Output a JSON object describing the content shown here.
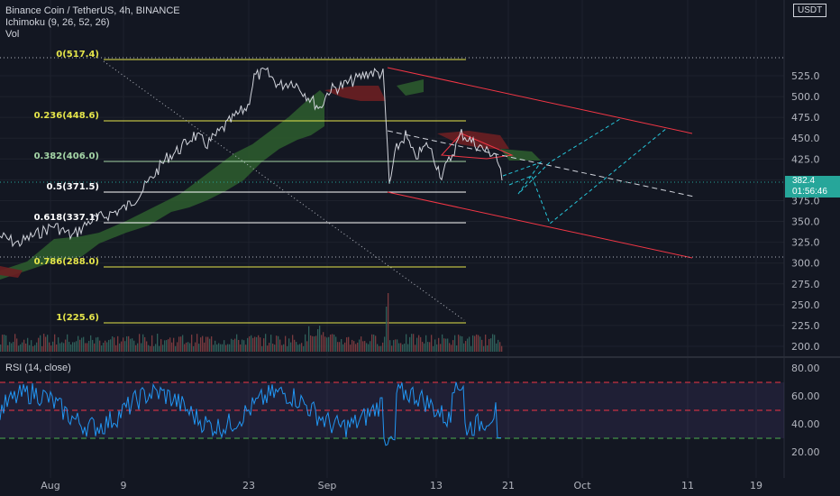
{
  "header": {
    "symbol_line": "Binance Coin / TetherUS, 4h, BINANCE",
    "indicator_1": "Ichimoku (9, 26, 52, 26)",
    "indicator_2": "Vol"
  },
  "rsi_panel": {
    "label": "RSI (14, close)"
  },
  "price_scale": {
    "currency": "USDT",
    "current_price": "382.4",
    "countdown": "01:56:46"
  },
  "colors": {
    "background": "#131722",
    "fib_yellow": "#e5e54a",
    "fib_green": "#66bb6a",
    "fib_white": "#ffffff",
    "channel_red": "#f23645",
    "projection_cyan": "#26c6da",
    "rsi_line": "#2196f3",
    "rsi_band": "#7e57c2",
    "price_tag": "#26a69a",
    "cloud_green": "#2e5e2e",
    "cloud_red": "#6b1f22"
  },
  "chart_data": [
    {
      "type": "line",
      "title": "Binance Coin / TetherUS, 4h, BINANCE",
      "y_ticks": [
        "525.0",
        "500.0",
        "475.0",
        "450.0",
        "425.0",
        "400.0",
        "375.0",
        "350.0",
        "325.0",
        "300.0",
        "275.0",
        "250.0",
        "225.0",
        "200.0"
      ],
      "ylim": [
        195,
        555
      ],
      "x_ticks": [
        "Aug",
        "9",
        "23",
        "Sep",
        "13",
        "21",
        "Oct",
        "11",
        "19"
      ],
      "fib_levels": [
        {
          "label": "0(517.4)",
          "value": 517.4
        },
        {
          "label": "0.236(448.6)",
          "value": 448.6
        },
        {
          "label": "0.382(406.0)",
          "value": 406.0
        },
        {
          "label": "0.5(371.5)",
          "value": 371.5
        },
        {
          "label": "0.618(337.1)",
          "value": 337.1
        },
        {
          "label": "0.786(288.0)",
          "value": 288.0
        },
        {
          "label": "1(225.6)",
          "value": 225.6
        }
      ],
      "price_path": [
        [
          "Jul 29",
          315
        ],
        [
          "Aug 1",
          325
        ],
        [
          "Aug 4",
          335
        ],
        [
          "Aug 7",
          328
        ],
        [
          "Aug 9",
          350
        ],
        [
          "Aug 11",
          385
        ],
        [
          "Aug 13",
          405
        ],
        [
          "Aug 15",
          430
        ],
        [
          "Aug 17",
          410
        ],
        [
          "Aug 19",
          440
        ],
        [
          "Aug 21",
          455
        ],
        [
          "Aug 23",
          505
        ],
        [
          "Aug 25",
          495
        ],
        [
          "Aug 27",
          480
        ],
        [
          "Aug 29",
          490
        ],
        [
          "Aug 31",
          470
        ],
        [
          "Sep 2",
          500
        ],
        [
          "Sep 4",
          497
        ],
        [
          "Sep 6",
          510
        ],
        [
          "Sep 7",
          490
        ],
        [
          "Sep 7b",
          380
        ],
        [
          "Sep 9",
          410
        ],
        [
          "Sep 11",
          395
        ],
        [
          "Sep 13",
          410
        ],
        [
          "Sep 15",
          435
        ],
        [
          "Sep 17",
          415
        ],
        [
          "Sep 19",
          400
        ],
        [
          "Sep 20",
          382.4
        ]
      ],
      "current_price": 382.4
    },
    {
      "type": "line",
      "title": "RSI (14, close)",
      "y_ticks": [
        "80.00",
        "60.00",
        "40.00",
        "20.00"
      ],
      "ylim": [
        10,
        85
      ],
      "levels": [
        70,
        50,
        30
      ]
    }
  ]
}
